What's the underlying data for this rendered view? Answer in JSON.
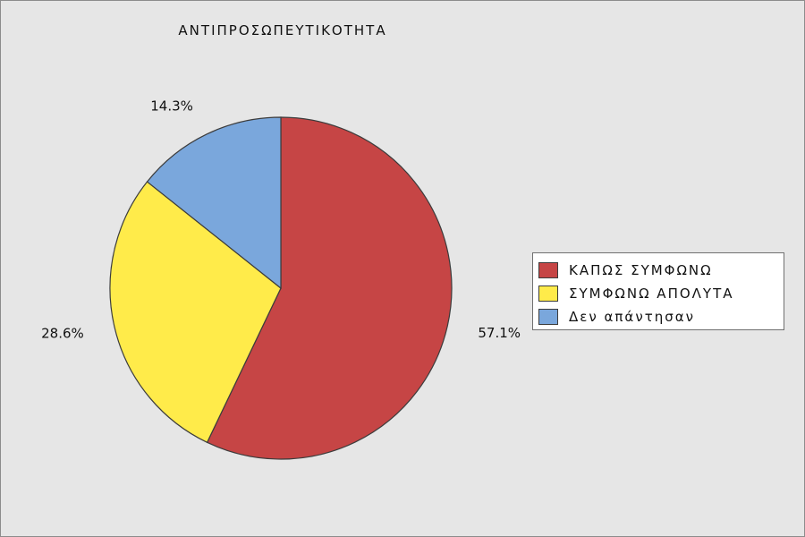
{
  "chart_data": {
    "type": "pie",
    "title": "ΑΝΤΙΠΡΟΣΩΠΕΥΤΙΚΟΤΗΤΑ",
    "categories": [
      "ΚΑΠΩΣ ΣΥΜΦΩΝΩ",
      "ΣΥΜΦΩΝΩ ΑΠΟΛΥΤΑ",
      "Δεν απάντησαν"
    ],
    "values": [
      57.1,
      28.6,
      14.3
    ],
    "data_labels": [
      "57.1%",
      "28.6%",
      "14.3%"
    ],
    "colors": [
      "#c64545",
      "#ffeb4a",
      "#7aa7dc"
    ],
    "legend_position": "right",
    "background": "#e6e6e6"
  }
}
